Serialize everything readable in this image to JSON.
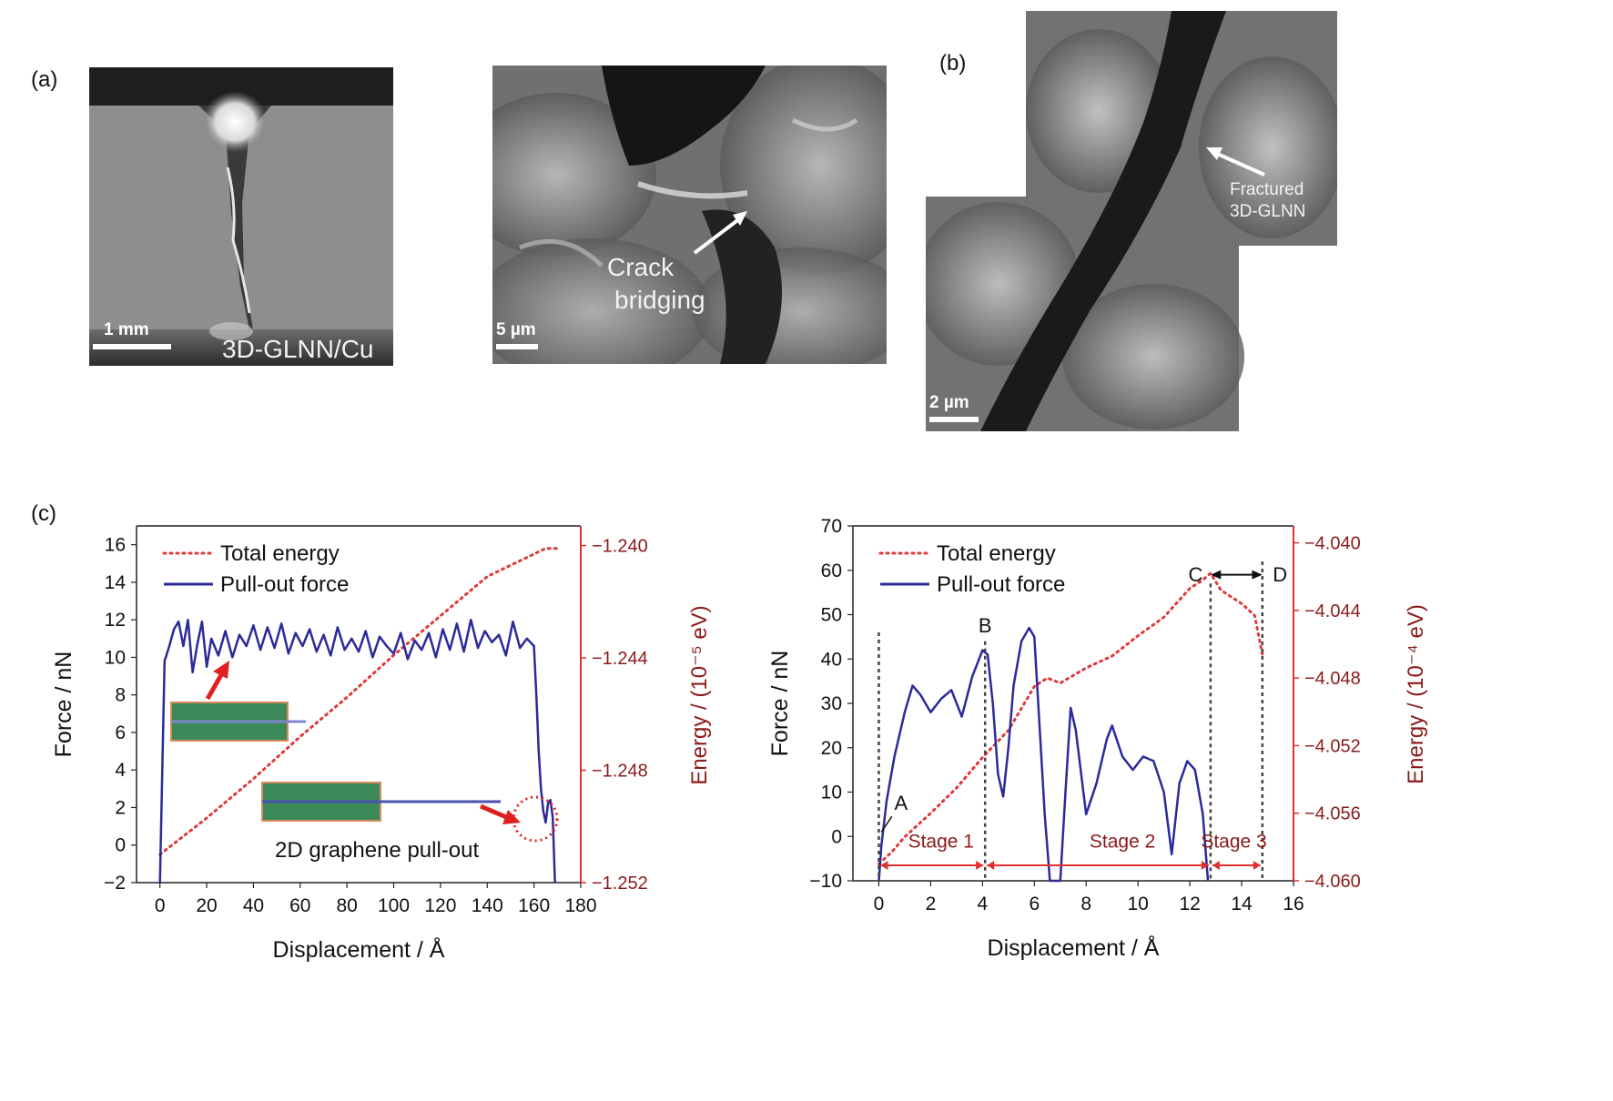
{
  "panel_labels": {
    "a": "(a)",
    "b": "(b)",
    "c": "(c)"
  },
  "images": {
    "img1": {
      "scale_label": "1 mm",
      "caption": "3D-GLNN/Cu"
    },
    "img2": {
      "scale_label": "5 µm",
      "annotation_line1": "Crack",
      "annotation_line2": "bridging"
    },
    "img3": {
      "scale_label": "2 µm",
      "annotation_line1": "Fractured",
      "annotation_line2": "3D-GLNN"
    }
  },
  "colors": {
    "force": "#2b2a9a",
    "energy": "#e0393b",
    "energy_axis": "#e03030",
    "energy_label": "#8b1a1a",
    "sheet": "#3c8a5a"
  },
  "chart_data": [
    {
      "type": "line",
      "xlabel": "Displacement / Å",
      "ylabel": "Force / nN",
      "y2label": "Energy / (10⁻⁵ eV)",
      "xlim": [
        -10,
        180
      ],
      "ylim": [
        -2,
        17
      ],
      "y2lim": [
        -1.252,
        -1.2393
      ],
      "x_ticks": [
        "0",
        "20",
        "40",
        "60",
        "80",
        "100",
        "120",
        "140",
        "160",
        "180"
      ],
      "y_ticks": [
        "−2",
        "0",
        "2",
        "4",
        "6",
        "8",
        "10",
        "12",
        "14",
        "16"
      ],
      "y2_ticks": [
        "−1.240",
        "−1.244",
        "−1.248",
        "−1.252"
      ],
      "legend": {
        "position": "top-left",
        "entries": [
          "Total energy",
          "Pull-out force"
        ]
      },
      "annotation": "2D graphene pull-out",
      "series": [
        {
          "name": "Total energy",
          "axis": "right",
          "style": "dotted",
          "x": [
            0,
            20,
            40,
            60,
            80,
            100,
            120,
            140,
            160,
            165,
            170
          ],
          "y": [
            -1.251,
            -1.2497,
            -1.2483,
            -1.2468,
            -1.2454,
            -1.2439,
            -1.2425,
            -1.2411,
            -1.2403,
            -1.2401,
            -1.2401
          ]
        },
        {
          "name": "Pull-out force",
          "axis": "left",
          "style": "solid",
          "x": [
            0,
            2,
            4,
            6,
            8,
            10,
            12,
            14,
            16,
            18,
            20,
            22,
            25,
            28,
            31,
            34,
            37,
            40,
            43,
            46,
            49,
            52,
            55,
            58,
            61,
            64,
            67,
            70,
            73,
            76,
            79,
            82,
            85,
            88,
            91,
            94,
            97,
            100,
            103,
            106,
            109,
            112,
            115,
            118,
            121,
            124,
            127,
            130,
            133,
            136,
            139,
            142,
            145,
            148,
            151,
            154,
            157,
            160,
            161,
            162,
            163,
            164,
            165,
            166,
            167,
            168,
            169
          ],
          "y": [
            -2,
            9.8,
            10.6,
            11.5,
            11.9,
            10.6,
            12.0,
            9.2,
            10.7,
            11.9,
            9.5,
            11.0,
            10.1,
            11.4,
            10.0,
            11.2,
            10.6,
            11.7,
            10.4,
            11.6,
            10.5,
            11.8,
            10.2,
            11.3,
            10.6,
            11.5,
            10.3,
            11.2,
            10.1,
            11.6,
            10.4,
            11.0,
            10.3,
            11.4,
            10.0,
            11.1,
            10.6,
            10.2,
            11.3,
            9.9,
            10.9,
            10.4,
            11.3,
            10.0,
            11.5,
            10.4,
            11.8,
            10.3,
            12.0,
            10.5,
            11.4,
            10.8,
            11.2,
            10.1,
            11.9,
            10.5,
            11.0,
            10.6,
            8.0,
            5.0,
            3.0,
            1.8,
            1.2,
            2.2,
            2.4,
            1.5,
            -2
          ]
        }
      ]
    },
    {
      "type": "line",
      "xlabel": "Displacement / Å",
      "ylabel": "Force / nN",
      "y2label": "Energy / (10⁻⁴ eV)",
      "xlim": [
        -1,
        16
      ],
      "ylim": [
        -10,
        70
      ],
      "y2lim": [
        -4.06,
        -4.039
      ],
      "x_ticks": [
        "0",
        "2",
        "4",
        "6",
        "8",
        "10",
        "12",
        "14",
        "16"
      ],
      "y_ticks": [
        "−10",
        "0",
        "10",
        "20",
        "30",
        "40",
        "50",
        "60",
        "70"
      ],
      "y2_ticks": [
        "−4.040",
        "−4.044",
        "−4.048",
        "−4.052",
        "−4.056",
        "−4.060"
      ],
      "legend": {
        "position": "top-left",
        "entries": [
          "Total energy",
          "Pull-out force"
        ]
      },
      "markers": [
        "A",
        "B",
        "C",
        "D"
      ],
      "stages": [
        "Stage 1",
        "Stage 2",
        "Stage 3"
      ],
      "series": [
        {
          "name": "Total energy",
          "axis": "right",
          "style": "dotted",
          "x": [
            0,
            0.5,
            1,
            2,
            3,
            4,
            5,
            6,
            6.5,
            7,
            8,
            9,
            10,
            11,
            12,
            12.5,
            12.8,
            13.2,
            13.6,
            14,
            14.5,
            14.8
          ],
          "y": [
            -4.059,
            -4.0583,
            -4.0574,
            -4.056,
            -4.0545,
            -4.0527,
            -4.0511,
            -4.0485,
            -4.048,
            -4.0483,
            -4.0474,
            -4.0467,
            -4.0455,
            -4.0444,
            -4.0427,
            -4.0422,
            -4.0418,
            -4.0428,
            -4.0432,
            -4.0436,
            -4.0443,
            -4.0466
          ]
        },
        {
          "name": "Pull-out force",
          "axis": "left",
          "style": "solid",
          "x": [
            0,
            0.1,
            0.3,
            0.6,
            1.0,
            1.3,
            1.6,
            2.0,
            2.4,
            2.8,
            3.2,
            3.6,
            4.0,
            4.2,
            4.4,
            4.6,
            4.8,
            5.0,
            5.2,
            5.5,
            5.8,
            6.0,
            6.2,
            6.4,
            6.6,
            6.8,
            7.0,
            7.2,
            7.4,
            7.6,
            8.0,
            8.4,
            8.8,
            9.0,
            9.4,
            9.8,
            10.2,
            10.6,
            11.0,
            11.3,
            11.6,
            11.9,
            12.2,
            12.5,
            12.7
          ],
          "y": [
            -10,
            -2,
            8,
            18,
            28,
            34,
            32,
            28,
            31,
            33,
            27,
            36,
            42,
            41,
            30,
            14,
            9,
            20,
            34,
            44,
            47,
            45,
            25,
            5,
            -10,
            -10,
            -10,
            10,
            29,
            24,
            5,
            12,
            22,
            25,
            18,
            15,
            18,
            17,
            10,
            -4,
            12,
            17,
            15,
            5,
            -10
          ]
        }
      ]
    }
  ]
}
